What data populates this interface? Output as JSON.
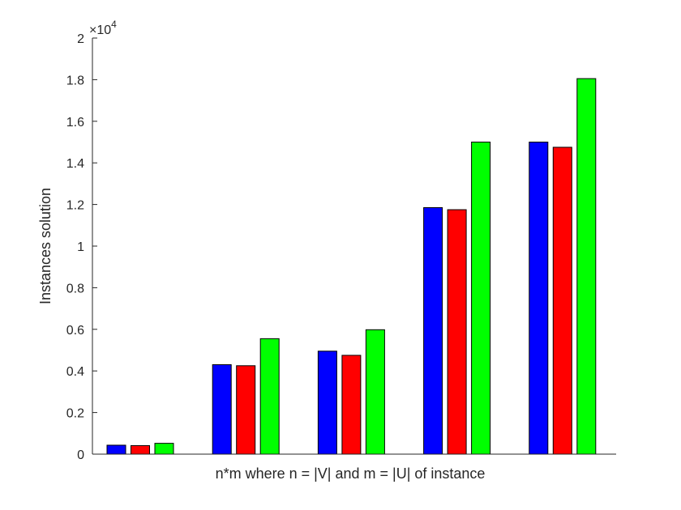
{
  "chart_data": {
    "type": "bar",
    "categories": [
      "",
      "",
      "",
      "",
      ""
    ],
    "series": [
      {
        "color": "#0000ff",
        "values": [
          430,
          4300,
          4950,
          11850,
          15000
        ]
      },
      {
        "color": "#ff0000",
        "values": [
          410,
          4250,
          4750,
          11750,
          14750
        ]
      },
      {
        "color": "#00ff00",
        "values": [
          520,
          5550,
          5980,
          15000,
          18050
        ]
      }
    ],
    "title": "",
    "xlabel": "n*m where n = |V| and m = |U| of instance",
    "ylabel": "Instances solution",
    "ylim": [
      0,
      20000
    ],
    "yticks": [
      0,
      2000,
      4000,
      6000,
      8000,
      10000,
      12000,
      14000,
      16000,
      18000,
      20000
    ],
    "ytick_labels": [
      "0",
      "0.2",
      "0.4",
      "0.6",
      "0.8",
      "1",
      "1.2",
      "1.4",
      "1.6",
      "1.8",
      "2"
    ],
    "y_exponent_base": "×10",
    "y_exponent_power": "4",
    "grid": false,
    "legend": "none"
  }
}
